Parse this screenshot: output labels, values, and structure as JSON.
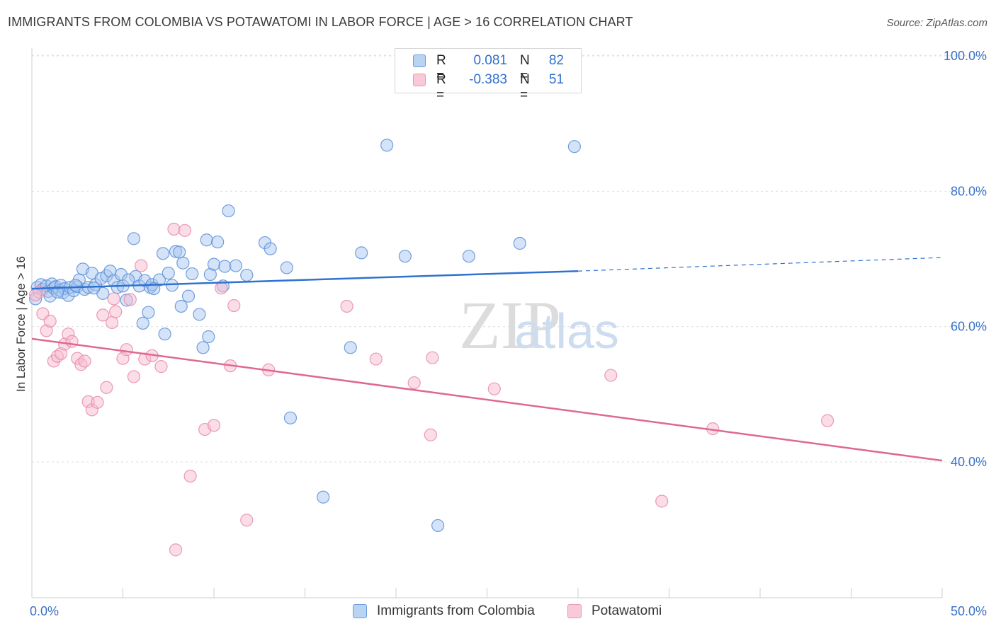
{
  "title": "IMMIGRANTS FROM COLOMBIA VS POTAWATOMI IN LABOR FORCE | AGE > 16 CORRELATION CHART",
  "source": "Source: ZipAtlas.com",
  "watermark": {
    "zip": "ZIP",
    "atlas": "atlas"
  },
  "legend": {
    "rows": [
      {
        "r_label": "R =",
        "r_value": "0.081",
        "n_label": "N =",
        "n_value": "82"
      },
      {
        "r_label": "R =",
        "r_value": "-0.383",
        "n_label": "N =",
        "n_value": "51"
      }
    ]
  },
  "bottom_legend": {
    "colombia": "Immigrants from Colombia",
    "potawatomi": "Potawatomi"
  },
  "chart_data": {
    "type": "scatter",
    "ylabel": "In Labor Force | Age > 16",
    "xlim": [
      0,
      50
    ],
    "ylim": [
      20,
      103
    ],
    "x_tick_labels": [
      "0.0%",
      "50.0%"
    ],
    "y_ticks": [
      40,
      60,
      80,
      100
    ],
    "y_tick_labels": [
      "40.0%",
      "60.0%",
      "80.0%",
      "100.0%"
    ],
    "grid": true,
    "legend_position": "top-center",
    "colors": {
      "colombia_fill": "#a9c8f0",
      "colombia_stroke": "#5b8fd8",
      "colombia_line": "#2f72d0",
      "potawatomi_fill": "#f8bcd0",
      "potawatomi_stroke": "#e88aa8",
      "potawatomi_line": "#e06890",
      "tick_label": "#3a72c8"
    },
    "series": [
      {
        "name": "Immigrants from Colombia",
        "trend": {
          "x0": 0,
          "y0": 65.6,
          "x1": 30,
          "y1": 68.2,
          "dash_to_x": 50,
          "dash_to_y": 70.2
        },
        "points": [
          [
            0.3,
            65.8
          ],
          [
            0.5,
            66.2
          ],
          [
            0.6,
            65.5
          ],
          [
            0.8,
            66.0
          ],
          [
            0.9,
            65.2
          ],
          [
            1.0,
            64.5
          ],
          [
            1.1,
            66.3
          ],
          [
            1.2,
            65.7
          ],
          [
            1.3,
            65.9
          ],
          [
            1.5,
            65.4
          ],
          [
            1.6,
            66.1
          ],
          [
            1.7,
            65.0
          ],
          [
            1.8,
            65.6
          ],
          [
            2.0,
            64.6
          ],
          [
            2.1,
            65.8
          ],
          [
            2.3,
            65.3
          ],
          [
            2.5,
            65.9
          ],
          [
            2.6,
            66.9
          ],
          [
            2.8,
            68.5
          ],
          [
            2.9,
            65.5
          ],
          [
            3.1,
            65.8
          ],
          [
            3.3,
            67.9
          ],
          [
            3.5,
            66.2
          ],
          [
            3.8,
            67.1
          ],
          [
            3.9,
            64.9
          ],
          [
            4.1,
            67.5
          ],
          [
            4.3,
            68.2
          ],
          [
            4.5,
            66.8
          ],
          [
            4.7,
            65.8
          ],
          [
            4.9,
            67.7
          ],
          [
            5.0,
            66.0
          ],
          [
            5.2,
            63.9
          ],
          [
            5.6,
            73.0
          ],
          [
            5.7,
            67.4
          ],
          [
            5.9,
            66.0
          ],
          [
            6.1,
            60.5
          ],
          [
            6.2,
            66.8
          ],
          [
            6.4,
            62.1
          ],
          [
            6.5,
            65.8
          ],
          [
            6.6,
            66.2
          ],
          [
            7.0,
            66.9
          ],
          [
            7.2,
            70.8
          ],
          [
            7.3,
            58.9
          ],
          [
            7.5,
            67.9
          ],
          [
            7.7,
            66.1
          ],
          [
            7.9,
            71.1
          ],
          [
            8.1,
            71.0
          ],
          [
            8.2,
            63.0
          ],
          [
            8.3,
            69.4
          ],
          [
            8.6,
            64.5
          ],
          [
            8.8,
            67.8
          ],
          [
            9.2,
            61.8
          ],
          [
            9.4,
            56.9
          ],
          [
            9.6,
            72.8
          ],
          [
            9.7,
            58.5
          ],
          [
            9.8,
            67.7
          ],
          [
            10.0,
            69.2
          ],
          [
            10.2,
            72.5
          ],
          [
            10.5,
            66.0
          ],
          [
            10.6,
            68.9
          ],
          [
            10.8,
            77.1
          ],
          [
            11.2,
            69.0
          ],
          [
            11.8,
            67.6
          ],
          [
            12.8,
            72.4
          ],
          [
            13.1,
            71.5
          ],
          [
            14.0,
            68.7
          ],
          [
            14.2,
            46.5
          ],
          [
            16.0,
            34.8
          ],
          [
            17.5,
            56.9
          ],
          [
            18.1,
            70.9
          ],
          [
            19.5,
            86.8
          ],
          [
            20.5,
            70.4
          ],
          [
            22.3,
            30.6
          ],
          [
            24.0,
            70.4
          ],
          [
            26.8,
            72.3
          ],
          [
            29.8,
            86.6
          ],
          [
            0.2,
            64.1
          ],
          [
            1.4,
            65.1
          ],
          [
            3.4,
            65.7
          ],
          [
            5.3,
            66.9
          ],
          [
            6.7,
            65.6
          ],
          [
            2.4,
            66.1
          ]
        ]
      },
      {
        "name": "Potawatomi",
        "trend": {
          "x0": 0,
          "y0": 58.2,
          "x1": 50,
          "y1": 40.2
        },
        "points": [
          [
            0.4,
            65.1
          ],
          [
            0.6,
            61.9
          ],
          [
            0.8,
            59.4
          ],
          [
            1.0,
            60.8
          ],
          [
            1.2,
            54.9
          ],
          [
            1.4,
            55.6
          ],
          [
            1.6,
            56.0
          ],
          [
            1.8,
            57.4
          ],
          [
            2.0,
            58.9
          ],
          [
            2.2,
            57.8
          ],
          [
            2.5,
            55.3
          ],
          [
            2.7,
            54.4
          ],
          [
            2.9,
            54.9
          ],
          [
            3.1,
            48.9
          ],
          [
            3.3,
            47.7
          ],
          [
            3.6,
            48.8
          ],
          [
            3.9,
            61.7
          ],
          [
            4.1,
            51.0
          ],
          [
            4.4,
            60.6
          ],
          [
            4.6,
            62.2
          ],
          [
            5.0,
            55.3
          ],
          [
            5.2,
            56.6
          ],
          [
            5.4,
            64.0
          ],
          [
            5.6,
            52.6
          ],
          [
            6.0,
            69.0
          ],
          [
            6.2,
            55.2
          ],
          [
            6.6,
            55.7
          ],
          [
            7.1,
            54.1
          ],
          [
            7.8,
            74.4
          ],
          [
            7.9,
            27.0
          ],
          [
            8.4,
            74.2
          ],
          [
            8.7,
            37.9
          ],
          [
            9.5,
            44.8
          ],
          [
            10.0,
            45.4
          ],
          [
            10.4,
            65.7
          ],
          [
            10.9,
            54.2
          ],
          [
            11.1,
            63.1
          ],
          [
            11.8,
            31.4
          ],
          [
            13.0,
            53.6
          ],
          [
            17.3,
            63.0
          ],
          [
            18.9,
            55.2
          ],
          [
            21.0,
            51.7
          ],
          [
            21.9,
            44.0
          ],
          [
            22.0,
            55.4
          ],
          [
            25.4,
            50.8
          ],
          [
            31.8,
            52.8
          ],
          [
            34.6,
            34.2
          ],
          [
            37.4,
            44.9
          ],
          [
            43.7,
            46.1
          ],
          [
            0.2,
            64.7
          ],
          [
            4.5,
            64.1
          ]
        ]
      }
    ]
  }
}
